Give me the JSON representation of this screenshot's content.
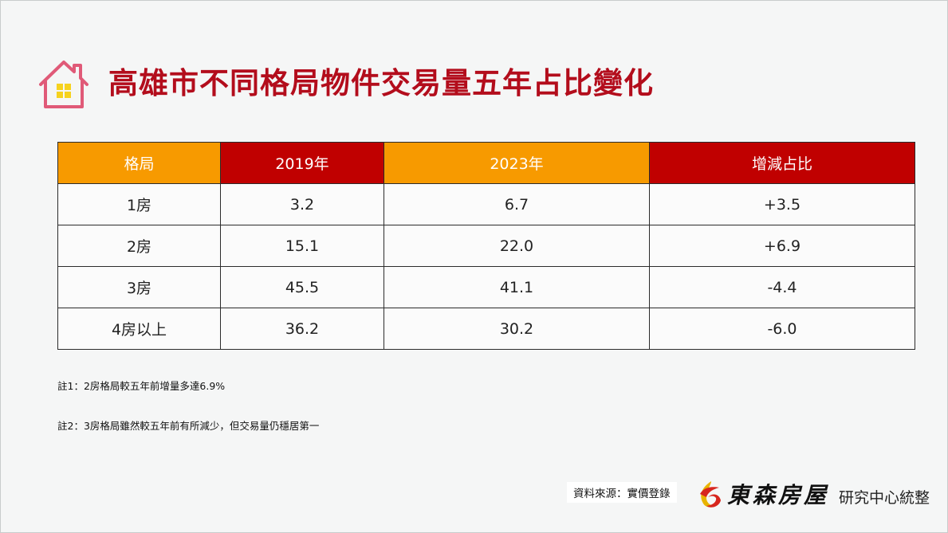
{
  "title": "高雄市不同格局物件交易量五年占比變化",
  "table": {
    "headers": [
      "格局",
      "2019年",
      "2023年",
      "增減占比"
    ],
    "rows": [
      [
        "1房",
        "3.2",
        "6.7",
        "+3.5"
      ],
      [
        "2房",
        "15.1",
        "22.0",
        "+6.9"
      ],
      [
        "3房",
        "45.5",
        "41.1",
        "-4.4"
      ],
      [
        "4房以上",
        "36.2",
        "30.2",
        "-6.0"
      ]
    ]
  },
  "notes": [
    "註1：2房格局較五年前增量多達6.9%",
    "註2：3房格局雖然較五年前有所減少，但交易量仍穩居第一"
  ],
  "footer": {
    "source": "資料來源：實價登錄",
    "brand": "東森房屋",
    "brand_suffix": "研究中心統整"
  },
  "colors": {
    "title": "#b30d1c",
    "header_orange": "#f79a00",
    "header_red": "#c00000",
    "icon_outline": "#e05a78",
    "icon_window": "#f6d21e"
  }
}
